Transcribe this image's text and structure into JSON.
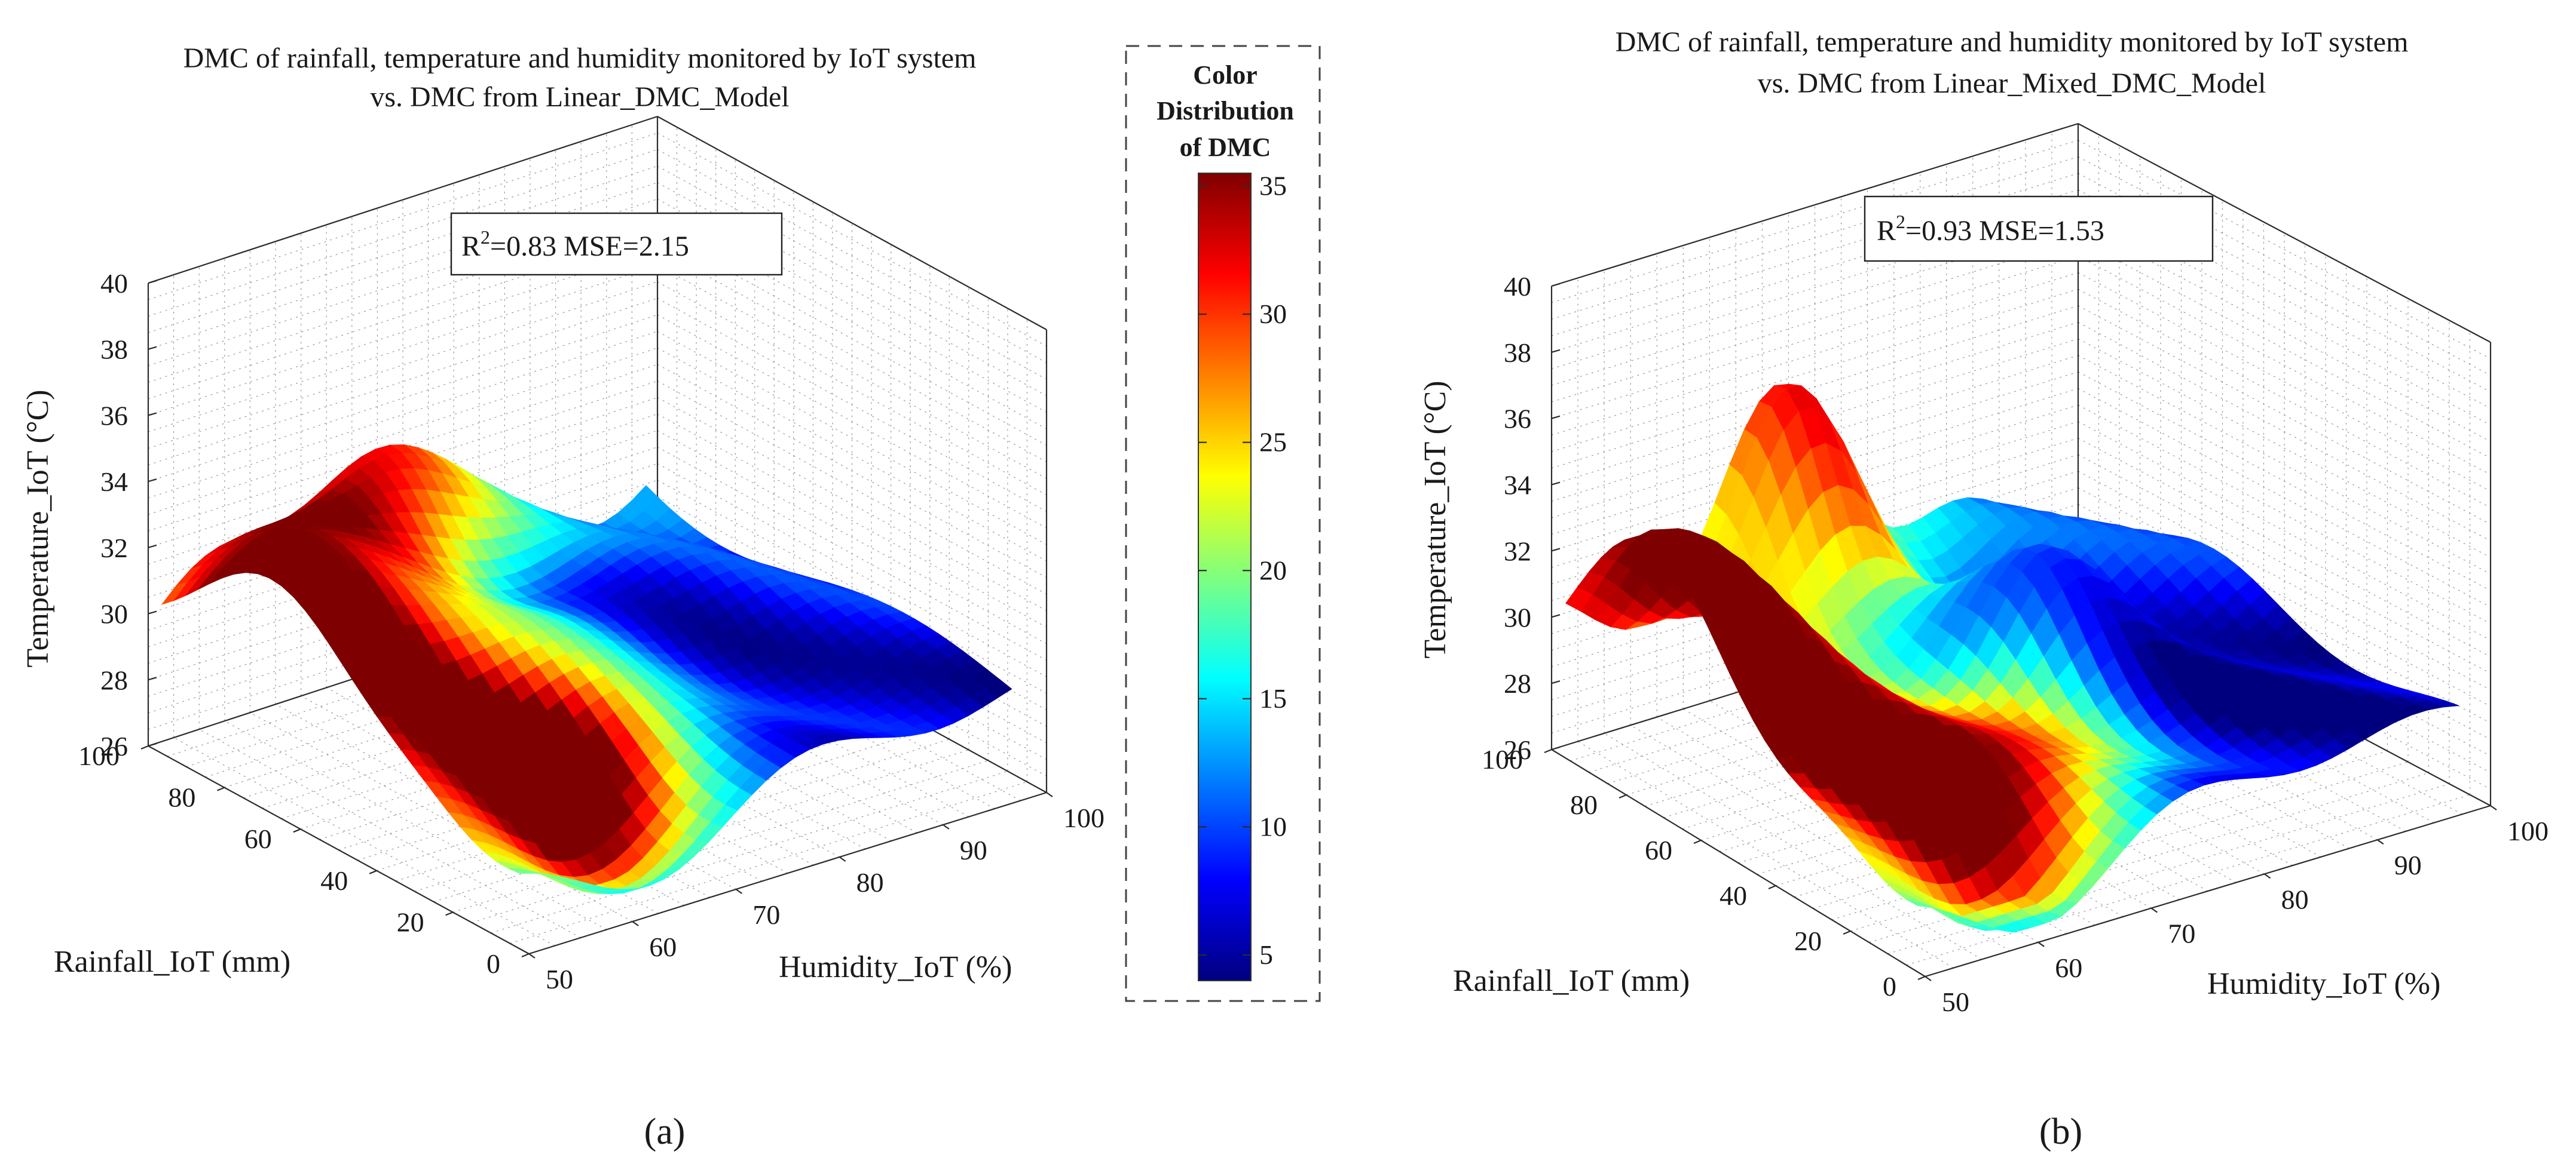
{
  "colors": {
    "jet": [
      "#00007f",
      "#0000ff",
      "#007fff",
      "#00ffff",
      "#7fff7f",
      "#ffff00",
      "#ff7f00",
      "#ff0000",
      "#7f0000"
    ]
  },
  "colorbar": {
    "title_lines": [
      "Color",
      "Distribution",
      "of DMC"
    ],
    "ticks": [
      "5",
      "10",
      "15",
      "20",
      "25",
      "30",
      "35"
    ],
    "range": [
      4,
      35.5
    ]
  },
  "chart_data": [
    {
      "type": "surface3d",
      "panel_label": "(a)",
      "title_lines": [
        "DMC of rainfall, temperature and humidity monitored by IoT system",
        "vs. DMC from Linear_DMC_Model"
      ],
      "xlabel": "Humidity_IoT (%)",
      "ylabel": "Rainfall_IoT (mm)",
      "zlabel": "Temperature_IoT (°C)",
      "x_ticks": [
        "50",
        "60",
        "70",
        "80",
        "90",
        "100"
      ],
      "y_ticks": [
        "0",
        "20",
        "40",
        "60",
        "80",
        "100"
      ],
      "z_ticks": [
        "26",
        "28",
        "30",
        "32",
        "34",
        "36",
        "38",
        "40"
      ],
      "xlim": [
        50,
        100
      ],
      "ylim": [
        0,
        100
      ],
      "zlim": [
        26,
        40
      ],
      "color_variable": "DMC",
      "color_range": [
        4,
        35.5
      ],
      "r2_prefix": "R",
      "r2_sup": "2",
      "stats_text": "=0.83   MSE=2.15",
      "r2": 0.83,
      "mse": 2.15
    },
    {
      "type": "surface3d",
      "panel_label": "(b)",
      "title_lines": [
        "DMC of rainfall, temperature and humidity monitored by IoT system",
        "vs. DMC from Linear_Mixed_DMC_Model"
      ],
      "xlabel": "Humidity_IoT (%)",
      "ylabel": "Rainfall_IoT (mm)",
      "zlabel": "Temperature_IoT (°C)",
      "x_ticks": [
        "50",
        "60",
        "70",
        "80",
        "90",
        "100"
      ],
      "y_ticks": [
        "0",
        "20",
        "40",
        "60",
        "80",
        "100"
      ],
      "z_ticks": [
        "26",
        "28",
        "30",
        "32",
        "34",
        "36",
        "38",
        "40"
      ],
      "xlim": [
        50,
        100
      ],
      "ylim": [
        0,
        100
      ],
      "zlim": [
        26,
        40
      ],
      "color_variable": "DMC",
      "color_range": [
        4,
        35.5
      ],
      "r2_prefix": "R",
      "r2_sup": "2",
      "stats_text": "=0.93   MSE=1.53",
      "r2": 0.93,
      "mse": 1.53
    }
  ]
}
